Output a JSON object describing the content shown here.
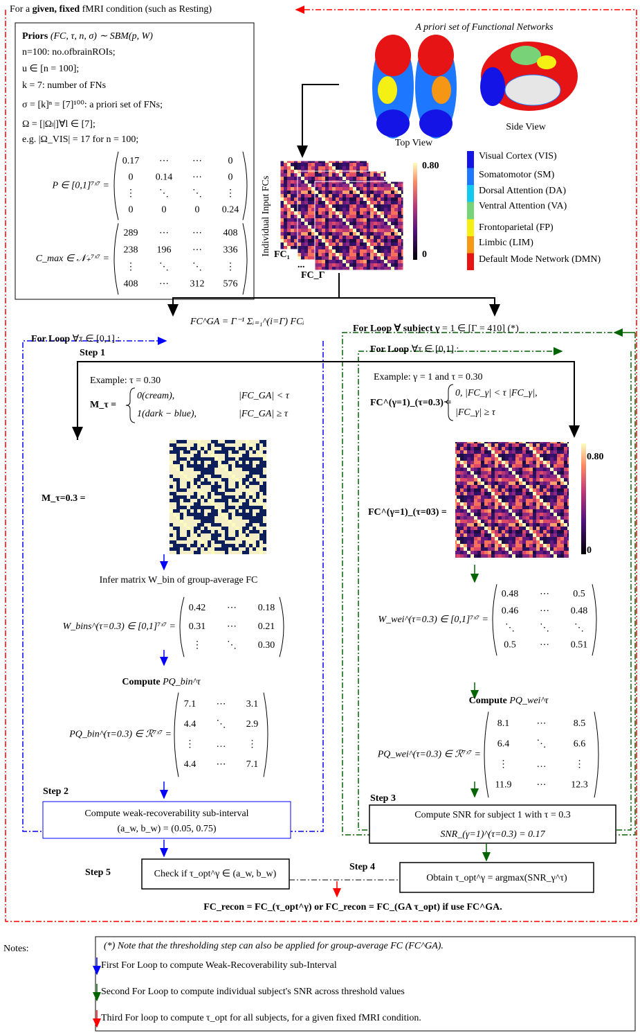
{
  "header": {
    "before": "For a ",
    "bold": "given, fixed",
    "after": " fMRI condition (such as Resting)"
  },
  "priors": {
    "title_bold": "Priors",
    "title": "(FC, τ, n, σ) ∼ SBM(p, W)",
    "lines": [
      "n=100: no.ofbrainROIs;",
      "u ∈ [n = 100];",
      "k = 7: number of FNs",
      "σ = [k]ⁿ = [7]¹⁰⁰: a priori set of FNs;",
      "Ω = [|Ωₗ|]∀l ∈ [7];",
      "e.g. |Ω_VIS| = 17 for n = 100;"
    ],
    "P": {
      "label": "P ∈ [0,1]⁷ˣ⁷ =",
      "rows": [
        [
          "0.17",
          "⋯",
          "⋯",
          "0"
        ],
        [
          "0",
          "0.14",
          "⋯",
          "0"
        ],
        [
          "⋮",
          "⋱",
          "⋱",
          "⋮"
        ],
        [
          "0",
          "0",
          "0",
          "0.24"
        ]
      ]
    },
    "C": {
      "label": "C_max ∈ 𝒩₊⁷ˣ⁷ =",
      "rows": [
        [
          "289",
          "⋯",
          "⋯",
          "408"
        ],
        [
          "238",
          "196",
          "⋯",
          "336"
        ],
        [
          "⋮",
          "⋱",
          "⋱",
          "⋮"
        ],
        [
          "408",
          "⋯",
          "312",
          "576"
        ]
      ]
    }
  },
  "networks": {
    "title": "A priori set of Functional Networks",
    "top_view": "Top View",
    "side_view": "Side View",
    "legend": [
      {
        "label": "Visual Cortex (VIS)",
        "color": "#1414e6"
      },
      {
        "label": "Somatomotor (SM)",
        "color": "#1e78ff"
      },
      {
        "label": "Dorsal Attention (DA)",
        "color": "#14c8f0"
      },
      {
        "label": "Ventral Attention (VA)",
        "color": "#78d278"
      },
      {
        "label": "Frontoparietal (FP)",
        "color": "#f5f014"
      },
      {
        "label": "Limbic (LIM)",
        "color": "#f59614"
      },
      {
        "label": "Default Mode Network (DMN)",
        "color": "#e61414"
      }
    ]
  },
  "input_fcs": {
    "axis_label": "Individual Input FCs",
    "first": "FC₁",
    "ellipsis": "...",
    "last": "FC_Γ",
    "colorbar_max": "0.80",
    "colorbar_min": "0"
  },
  "group_average": "FC^GA = Γ⁻¹ Σᵢ₌₁^(i=Γ) FCᵢ",
  "left_loop": {
    "title_bold": "For Loop",
    "title": "∀τ ∈ [0,1] :",
    "step": "Step 1",
    "example": "Example: τ = 0.30",
    "mask_label": "M_τ =",
    "cases": [
      [
        "0(cream),",
        "|FC_GA| < τ"
      ],
      [
        "1(dark − blue),",
        "|FC_GA| ≥ τ"
      ]
    ],
    "big_label": "M_τ=0.3 =",
    "infer": "Infer matrix W_bin of group-average FC",
    "W": {
      "label": "W_bins^(τ=0.3) ∈ [0,1]⁷ˣ⁷ =",
      "rows": [
        [
          "0.42",
          "⋯",
          "0.18"
        ],
        [
          "0.31",
          "⋯",
          "0.21"
        ],
        [
          "⋮",
          "⋱",
          "0.30"
        ]
      ]
    },
    "compute_bold": "Compute",
    "compute": "PQ_bin^τ",
    "PQ": {
      "label": "PQ_bin^(τ=0.3) ∈ ℛ⁷ˣ⁷ =",
      "rows": [
        [
          "7.1",
          "⋯",
          "3.1"
        ],
        [
          "4.4",
          "⋱",
          "2.9"
        ],
        [
          "⋮",
          "…",
          "⋮"
        ],
        [
          "4.4",
          "⋯",
          "7.1"
        ]
      ]
    },
    "step2": "Step 2",
    "step2_text": "Compute weak-recoverability sub-interval",
    "step2_result": "(a_w, b_w) = (0.05, 0.75)"
  },
  "right_loop": {
    "outer_title_bold": "For Loop ∀ subject γ",
    "outer_title": "= 1 ∈ [Γ = 410] (*)",
    "inner_title_bold": "For Loop",
    "inner_title": "∀τ ∈ [0,1] :",
    "example": "Example: γ = 1 and τ = 0.30",
    "fc_label": "FC^(γ=1)_(τ=0.3) =",
    "cases": [
      "0, |FC_γ| < τ |FC_γ|,",
      "|FC_γ| ≥ τ"
    ],
    "big_label": "FC^(γ=1)_(τ=03) =",
    "colorbar_max": "0.80",
    "colorbar_min": "0",
    "W": {
      "label": "W_wei^(τ=0.3) ∈ [0,1]⁷ˣ⁷ =",
      "rows": [
        [
          "0.48",
          "⋯",
          "0.5"
        ],
        [
          "0.46",
          "⋯",
          "0.48"
        ],
        [
          "⋱",
          "⋱",
          "⋱"
        ],
        [
          "0.5",
          "⋯",
          "0.51"
        ]
      ]
    },
    "compute_bold": "Compute",
    "compute": "PQ_wei^τ",
    "PQ": {
      "label": "PQ_wei^(τ=0.3) ∈ ℛ⁷ˣ⁷ =",
      "rows": [
        [
          "8.1",
          "⋯",
          "8.5"
        ],
        [
          "6.4",
          "⋱",
          "6.6"
        ],
        [
          "⋮",
          "…",
          "⋮"
        ],
        [
          "11.9",
          "⋯",
          "12.3"
        ]
      ]
    },
    "step3": "Step 3",
    "step3_text": "Compute SNR for subject 1 with τ = 0.3",
    "step3_result": "SNR_(γ=1)^(τ=0.3) = 0.17"
  },
  "bottom": {
    "step5": "Step 5",
    "check": "Check if τ_opt^γ ∈ (a_w, b_w)",
    "step4": "Step 4",
    "obtain": "Obtain τ_opt^γ = argmax(SNR_γ^τ)",
    "final": "FC_recon = FC_(τ_opt^γ) or FC_recon = FC_(GA τ_opt) if use FC^GA."
  },
  "notes": {
    "title": "Notes:",
    "star": "(*) Note that the thresholding step can also be applied for group-average FC (FC^GA).",
    "items": [
      {
        "text": "First For Loop to compute Weak-Recoverability sub-Interval",
        "color": "#0000ff"
      },
      {
        "text": "Second For Loop to compute individual subject's SNR across threshold values",
        "color": "#006400"
      },
      {
        "text": "Third For loop to compute τ_opt for all subjects, for a given fixed fMRI condition.",
        "color": "#ff0000"
      }
    ]
  }
}
